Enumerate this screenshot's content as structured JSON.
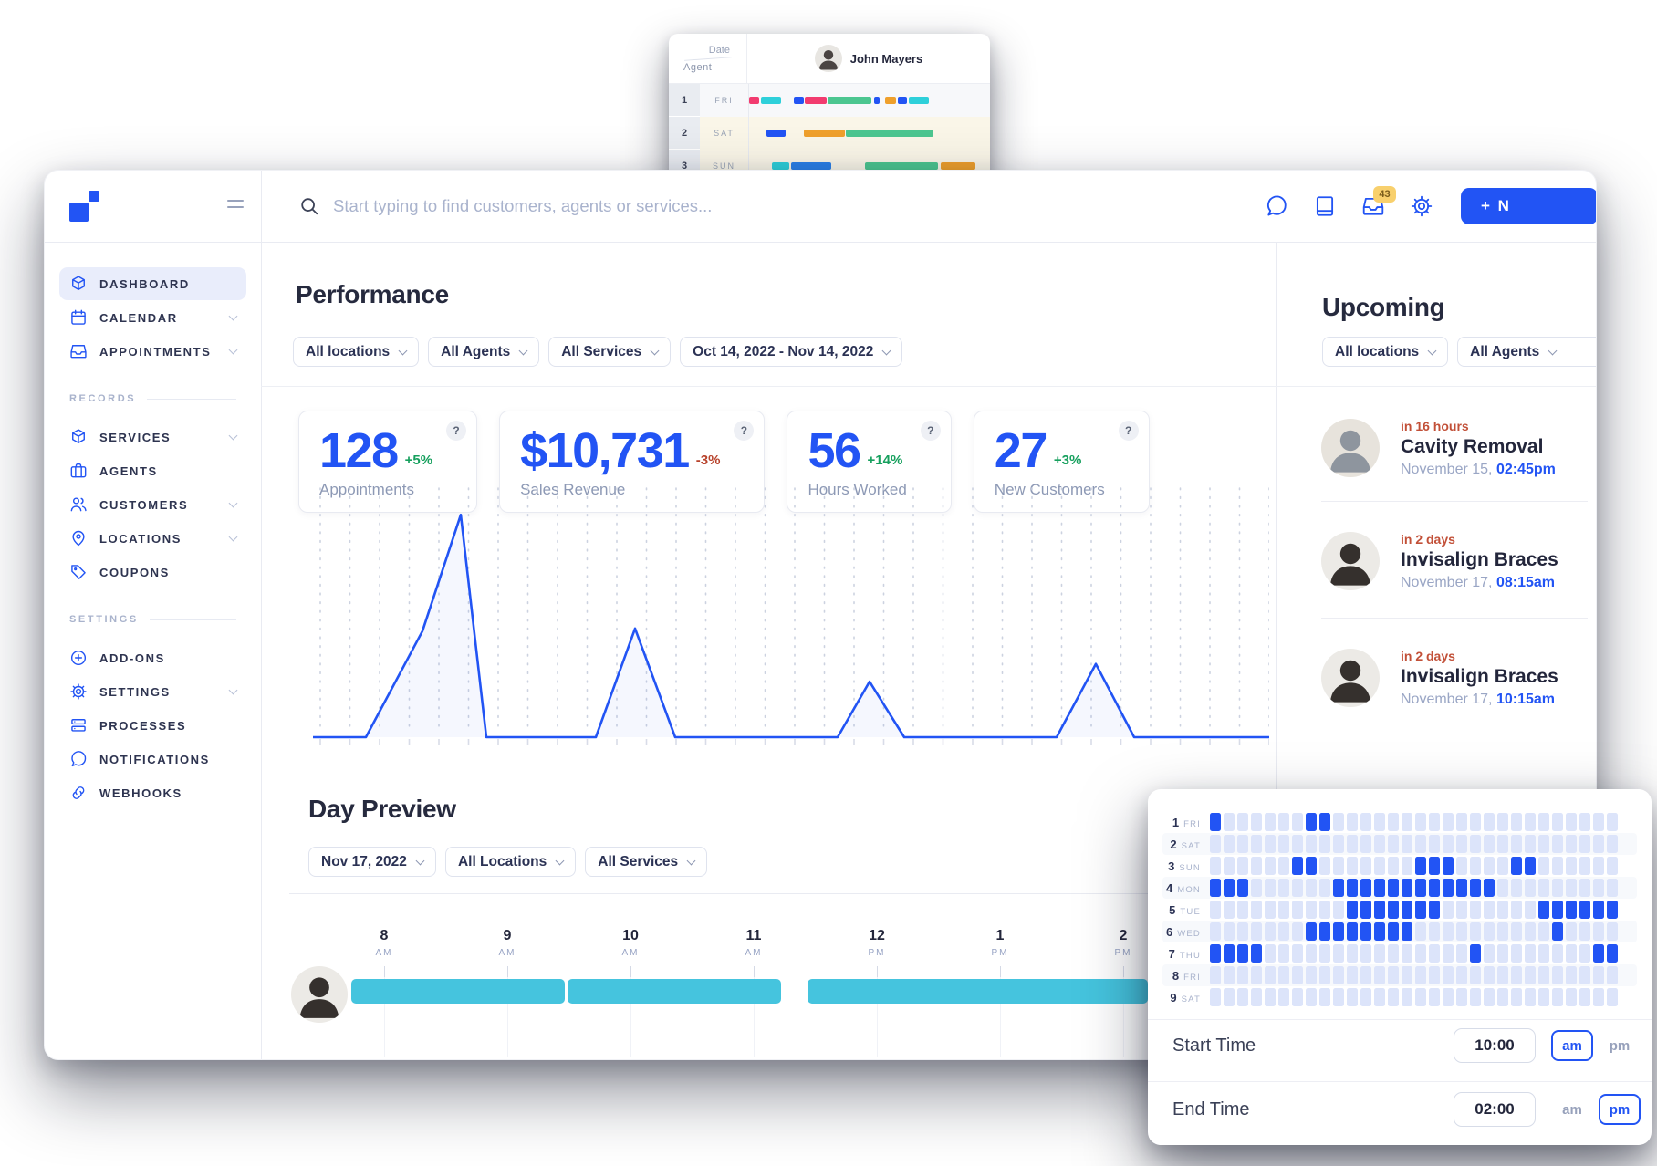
{
  "colors": {
    "accent": "#2254f4",
    "teal": "#45c4de",
    "green": "#17a05e",
    "red": "#b8432c",
    "eta_red": "#c25038",
    "badge_bg": "#f8d06d",
    "badge_text": "#7a5d1c",
    "grid_light": "#dce4fa"
  },
  "mini_window": {
    "corner": {
      "top": "Date",
      "bottom": "Agent"
    },
    "agent": {
      "name": "John Mayers",
      "avatar": "man-mini"
    },
    "rows": [
      {
        "num": "1",
        "day": "FRI",
        "weekend": false,
        "bars": [
          [
            0,
            11,
            "#f23b6f"
          ],
          [
            13,
            22,
            "#2ed0da"
          ],
          [
            49,
            11,
            "#2254f4"
          ],
          [
            61,
            24,
            "#f23b6f"
          ],
          [
            86,
            48,
            "#4cc690"
          ],
          [
            137,
            6,
            "#2254f4"
          ],
          [
            149,
            12,
            "#efa02c"
          ],
          [
            163,
            10,
            "#2254f4"
          ],
          [
            175,
            22,
            "#2ed0da"
          ]
        ]
      },
      {
        "num": "2",
        "day": "SAT",
        "weekend": true,
        "bars": [
          [
            19,
            21,
            "#2254f4"
          ],
          [
            60,
            45,
            "#efa02c"
          ],
          [
            106,
            96,
            "#4cc690"
          ]
        ]
      },
      {
        "num": "3",
        "day": "SUN",
        "weekend": true,
        "bars": [
          [
            25,
            19,
            "#2ed0da"
          ],
          [
            46,
            44,
            "#2b80e8"
          ],
          [
            127,
            80,
            "#4cc690"
          ],
          [
            210,
            38,
            "#efa02c"
          ]
        ]
      }
    ]
  },
  "main_window": {
    "topbar": {
      "search_placeholder": "Start typing to find customers, agents or services...",
      "icons": [
        {
          "name": "chat"
        },
        {
          "name": "book"
        },
        {
          "name": "inbox",
          "badge": "43"
        },
        {
          "name": "gear"
        }
      ],
      "new_button_label": "+ N"
    },
    "sidebar": {
      "sections": [
        {
          "header": null,
          "items": [
            {
              "label": "DASHBOARD",
              "icon": "cube",
              "active": true,
              "chevron": false
            },
            {
              "label": "CALENDAR",
              "icon": "calendar",
              "active": false,
              "chevron": true
            },
            {
              "label": "APPOINTMENTS",
              "icon": "inbox",
              "active": false,
              "chevron": true
            }
          ]
        },
        {
          "header": "RECORDS",
          "items": [
            {
              "label": "SERVICES",
              "icon": "cube",
              "active": false,
              "chevron": true
            },
            {
              "label": "AGENTS",
              "icon": "briefcase",
              "active": false,
              "chevron": false
            },
            {
              "label": "CUSTOMERS",
              "icon": "users",
              "active": false,
              "chevron": true
            },
            {
              "label": "LOCATIONS",
              "icon": "pin",
              "active": false,
              "chevron": true
            },
            {
              "label": "COUPONS",
              "icon": "tag",
              "active": false,
              "chevron": false
            }
          ]
        },
        {
          "header": "SETTINGS",
          "items": [
            {
              "label": "ADD-ONS",
              "icon": "plus-circle",
              "active": false,
              "chevron": false
            },
            {
              "label": "SETTINGS",
              "icon": "gear",
              "active": false,
              "chevron": true
            },
            {
              "label": "PROCESSES",
              "icon": "layers",
              "active": false,
              "chevron": false
            },
            {
              "label": "NOTIFICATIONS",
              "icon": "chat",
              "active": false,
              "chevron": false
            },
            {
              "label": "WEBHOOKS",
              "icon": "link",
              "active": false,
              "chevron": false
            }
          ]
        }
      ]
    },
    "performance": {
      "title": "Performance",
      "filters": [
        {
          "label": "All locations"
        },
        {
          "label": "All Agents"
        },
        {
          "label": "All Services"
        },
        {
          "label": "Oct 14, 2022 - Nov 14, 2022"
        }
      ],
      "stats": [
        {
          "value": "128",
          "delta": "+5%",
          "trend": "up",
          "label": "Appointments"
        },
        {
          "value": "$10,731",
          "delta": "-3%",
          "trend": "down",
          "label": "Sales Revenue"
        },
        {
          "value": "56",
          "delta": "+14%",
          "trend": "up",
          "label": "Hours Worked"
        },
        {
          "value": "27",
          "delta": "+3%",
          "trend": "up",
          "label": "New Customers"
        }
      ],
      "help_glyph": "?"
    },
    "upcoming": {
      "title": "Upcoming",
      "filters": [
        {
          "label": "All locations"
        },
        {
          "label": "All Agents"
        }
      ],
      "appointments": [
        {
          "eta": "in 16 hours",
          "service": "Cavity Removal",
          "date": "November 15,",
          "time": "02:45pm",
          "avatar": "man-gray"
        },
        {
          "eta": "in 2 days",
          "service": "Invisalign Braces",
          "date": "November 17,",
          "time": "08:15am",
          "avatar": "man-dark"
        },
        {
          "eta": "in 2 days",
          "service": "Invisalign Braces",
          "date": "November 17,",
          "time": "10:15am",
          "avatar": "man-dark"
        }
      ]
    },
    "day_preview": {
      "title": "Day Preview",
      "filters": [
        {
          "label": "Nov 17, 2022"
        },
        {
          "label": "All Locations"
        },
        {
          "label": "All Services"
        }
      ],
      "hours": [
        [
          "8",
          "AM"
        ],
        [
          "9",
          "AM"
        ],
        [
          "10",
          "AM"
        ],
        [
          "11",
          "AM"
        ],
        [
          "12",
          "PM"
        ],
        [
          "1",
          "PM"
        ],
        [
          "2",
          "PM"
        ]
      ],
      "agent_avatar": "man-dark",
      "booked_spans_hours": [
        [
          7.73,
          9.46
        ],
        [
          9.49,
          11.22
        ],
        [
          11.44,
          14.2
        ]
      ]
    }
  },
  "chart_data": {
    "type": "area",
    "title": "Appointments activity sparkline (no axis labels shown)",
    "x_range_label": "Oct 14, 2022 - Nov 14, 2022",
    "xlim": [
      0,
      1048
    ],
    "ylim": [
      0,
      100
    ],
    "grid": "vertical dotted columns, ticks under baseline",
    "points": [
      [
        0,
        0
      ],
      [
        58,
        0
      ],
      [
        120,
        42
      ],
      [
        162,
        88
      ],
      [
        190,
        0
      ],
      [
        310,
        0
      ],
      [
        353,
        43
      ],
      [
        397,
        0
      ],
      [
        575,
        0
      ],
      [
        610,
        22
      ],
      [
        648,
        0
      ],
      [
        815,
        0
      ],
      [
        858,
        29
      ],
      [
        900,
        0
      ],
      [
        1048,
        0
      ]
    ]
  },
  "overlay_panel": {
    "columns": 30,
    "rows": [
      {
        "num": "1",
        "day": "FRI",
        "cells": [
          0,
          7,
          8
        ]
      },
      {
        "num": "2",
        "day": "SAT",
        "cells": []
      },
      {
        "num": "3",
        "day": "SUN",
        "cells": [
          6,
          7,
          15,
          16,
          17,
          22,
          23
        ]
      },
      {
        "num": "4",
        "day": "MON",
        "cells": [
          0,
          1,
          2,
          9,
          10,
          11,
          12,
          13,
          14,
          15,
          16,
          17,
          18,
          19,
          20
        ]
      },
      {
        "num": "5",
        "day": "TUE",
        "cells": [
          10,
          11,
          12,
          13,
          14,
          15,
          16,
          24,
          25,
          26,
          27,
          28,
          29
        ]
      },
      {
        "num": "6",
        "day": "WED",
        "cells": [
          7,
          8,
          9,
          10,
          11,
          12,
          13,
          14,
          25
        ]
      },
      {
        "num": "7",
        "day": "THU",
        "cells": [
          0,
          1,
          2,
          3,
          19,
          28,
          29
        ]
      },
      {
        "num": "8",
        "day": "FRI",
        "cells": []
      },
      {
        "num": "9",
        "day": "SAT",
        "cells": []
      }
    ],
    "start_time": {
      "label": "Start Time",
      "value": "10:00",
      "period": "am"
    },
    "end_time": {
      "label": "End Time",
      "value": "02:00",
      "period": "pm"
    },
    "period_labels": [
      "am",
      "pm"
    ]
  }
}
